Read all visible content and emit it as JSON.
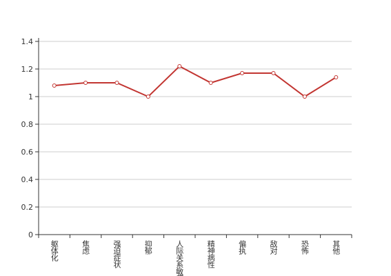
{
  "chart_data": {
    "type": "line",
    "categories": [
      "躯体化",
      "焦虑",
      "强迫症状",
      "抑郁",
      "人际关系敏感",
      "精神病性",
      "偏执",
      "敌对",
      "恐怖",
      "其他"
    ],
    "series": [
      {
        "color": "#c23531",
        "values": [
          1.08,
          1.1,
          1.1,
          1.0,
          1.22,
          1.1,
          1.17,
          1.17,
          1.0,
          1.14
        ]
      }
    ],
    "ylim": [
      0,
      1.4
    ],
    "yticks": [
      0,
      {
        "value": 0.2,
        "label": "0.2"
      },
      {
        "value": 0.4,
        "label": "0.4"
      },
      {
        "value": 0.6,
        "label": "0.6"
      },
      {
        "value": 0.8,
        "label": "0.8"
      },
      1,
      {
        "value": 1.2,
        "label": "1.2"
      },
      {
        "value": 1.4,
        "label": "1.4"
      }
    ],
    "grid": true
  }
}
